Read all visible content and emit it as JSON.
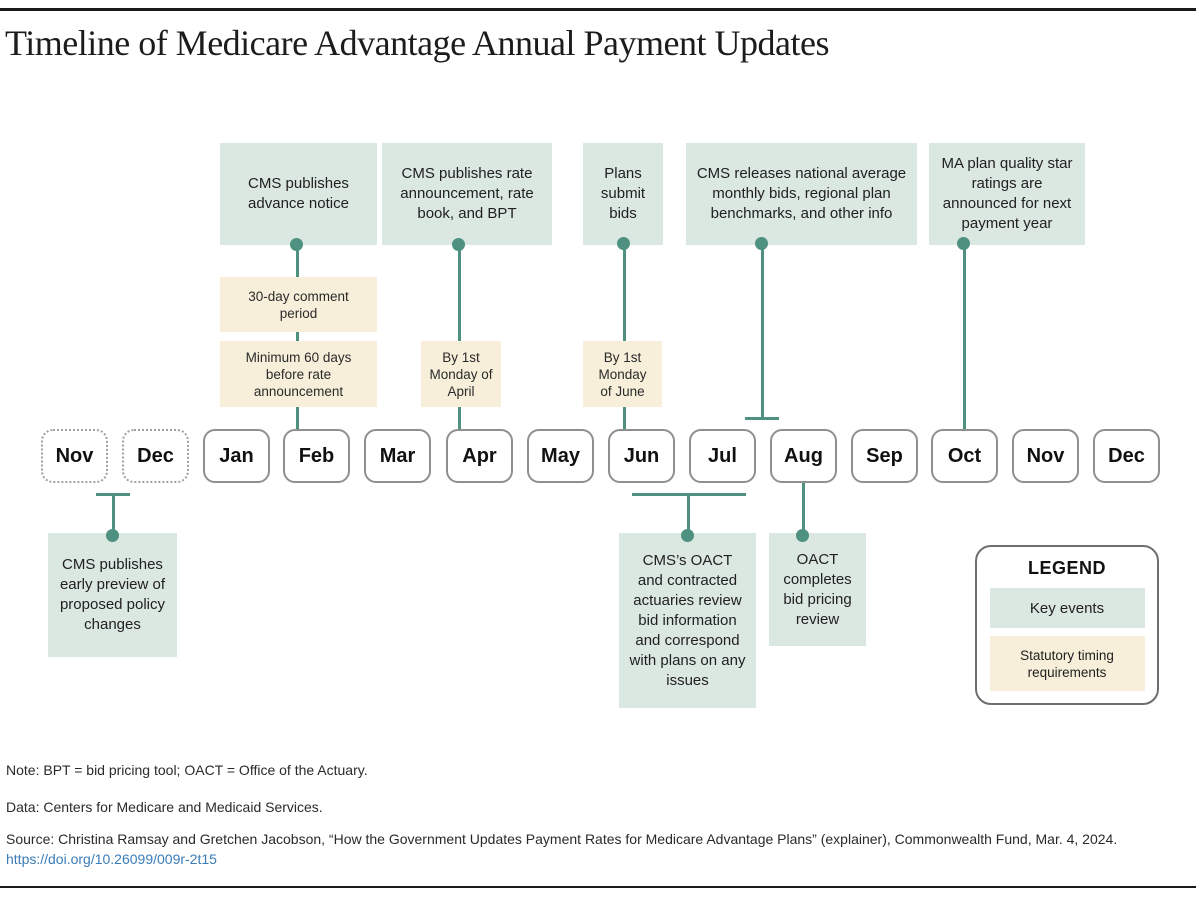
{
  "title": "Timeline of Medicare Advantage Annual Payment Updates",
  "colors": {
    "key_event_bg": "#dbe7e1",
    "statutory_bg": "#f7efda",
    "connector_green": "#4f9180",
    "month_border": "#8f8f8f",
    "rule": "#1a1a1a",
    "link_blue": "#3a7cb8"
  },
  "months": [
    {
      "label": "Nov",
      "dashed": true
    },
    {
      "label": "Dec",
      "dashed": true
    },
    {
      "label": "Jan",
      "dashed": false
    },
    {
      "label": "Feb",
      "dashed": false
    },
    {
      "label": "Mar",
      "dashed": false
    },
    {
      "label": "Apr",
      "dashed": false
    },
    {
      "label": "May",
      "dashed": false
    },
    {
      "label": "Jun",
      "dashed": false
    },
    {
      "label": "Jul",
      "dashed": false
    },
    {
      "label": "Aug",
      "dashed": false
    },
    {
      "label": "Sep",
      "dashed": false
    },
    {
      "label": "Oct",
      "dashed": false
    },
    {
      "label": "Nov",
      "dashed": false
    },
    {
      "label": "Dec",
      "dashed": false
    }
  ],
  "key_events_top": [
    {
      "text": "CMS publishes advance notice",
      "month": "Feb"
    },
    {
      "text": "CMS publishes rate announcement, rate book, and BPT",
      "month": "Apr"
    },
    {
      "text": "Plans submit bids",
      "month": "Jun"
    },
    {
      "text": "CMS releases national average monthly bids, regional plan benchmarks, and other info",
      "month": "Jul–Aug"
    },
    {
      "text": "MA plan quality star ratings are announced for next payment year",
      "month": "Oct"
    }
  ],
  "statutory_timing": [
    {
      "text": "30-day comment period"
    },
    {
      "text": "Minimum 60 days before rate announcement"
    },
    {
      "text": "By 1st Monday of April"
    },
    {
      "text": "By 1st Monday of June"
    }
  ],
  "key_events_bottom": [
    {
      "text": "CMS publishes early preview of proposed policy changes",
      "month": "Nov–Dec"
    },
    {
      "text": "CMS’s OACT and contracted actuaries review bid information and correspond with plans on any issues",
      "month": "Jun–Jul"
    },
    {
      "text": "OACT completes bid pricing review",
      "month": "Aug"
    }
  ],
  "legend": {
    "title": "LEGEND",
    "key_events_label": "Key events",
    "statutory_label": "Statutory timing requirements"
  },
  "footer": {
    "note": "Note: BPT = bid pricing tool; OACT = Office of the Actuary.",
    "data": "Data: Centers for Medicare and Medicaid Services.",
    "source": "Source: Christina Ramsay and Gretchen Jacobson, “How the Government Updates Payment Rates for Medicare Advantage Plans” (explainer), Commonwealth Fund, Mar. 4, 2024.",
    "link": "https://doi.org/10.26099/009r-2t15"
  }
}
